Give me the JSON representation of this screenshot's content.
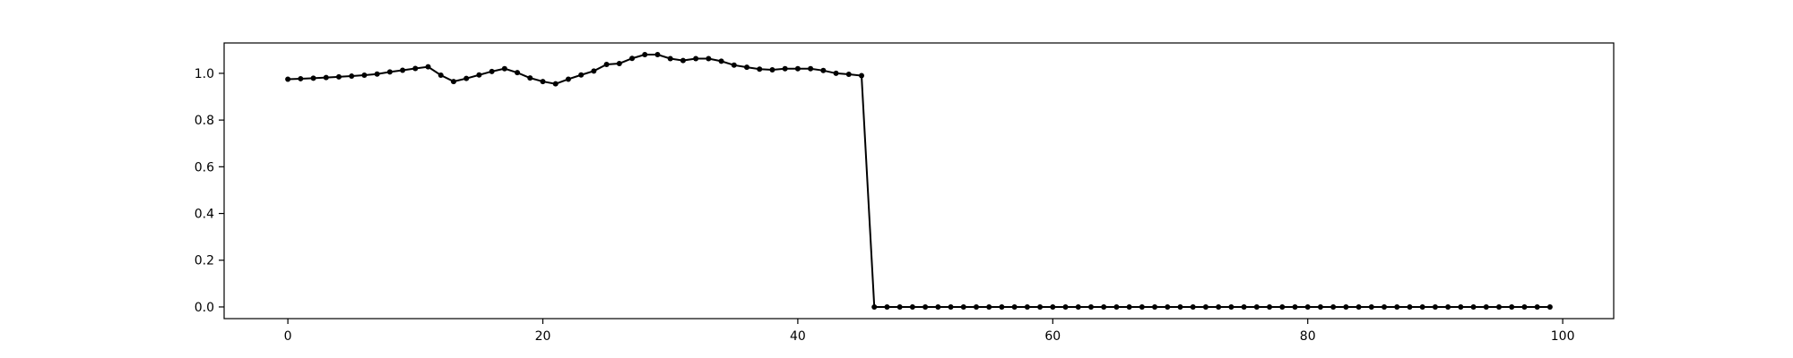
{
  "chart_data": {
    "type": "line",
    "title": "",
    "xlabel": "",
    "ylabel": "",
    "xlim": [
      -5,
      104
    ],
    "ylim": [
      -0.05,
      1.13
    ],
    "grid": false,
    "legend": "none",
    "marker": "dot",
    "colors": {
      "line": "#000000",
      "marker": "#000000",
      "axes": "#000000",
      "background": "#ffffff"
    },
    "x_ticks": [
      0,
      20,
      40,
      60,
      80,
      100
    ],
    "x_tick_labels": [
      "0",
      "20",
      "40",
      "60",
      "80",
      "100"
    ],
    "y_ticks": [
      0.0,
      0.2,
      0.4,
      0.6,
      0.8,
      1.0
    ],
    "y_tick_labels": [
      "0.0",
      "0.2",
      "0.4",
      "0.6",
      "0.8",
      "1.0"
    ],
    "series": [
      {
        "x": [
          0,
          1,
          2,
          3,
          4,
          5,
          6,
          7,
          8,
          9,
          10,
          11,
          12,
          13,
          14,
          15,
          16,
          17,
          18,
          19,
          20,
          21,
          22,
          23,
          24,
          25,
          26,
          27,
          28,
          29,
          30,
          31,
          32,
          33,
          34,
          35,
          36,
          37,
          38,
          39,
          40,
          41,
          42,
          43,
          44,
          45,
          46,
          47,
          48,
          49,
          50,
          51,
          52,
          53,
          54,
          55,
          56,
          57,
          58,
          59,
          60,
          61,
          62,
          63,
          64,
          65,
          66,
          67,
          68,
          69,
          70,
          71,
          72,
          73,
          74,
          75,
          76,
          77,
          78,
          79,
          80,
          81,
          82,
          83,
          84,
          85,
          86,
          87,
          88,
          89,
          90,
          91,
          92,
          93,
          94,
          95,
          96,
          97,
          98,
          99
        ],
        "values": [
          0.975,
          0.977,
          0.979,
          0.982,
          0.985,
          0.988,
          0.992,
          0.997,
          1.006,
          1.013,
          1.021,
          1.028,
          0.992,
          0.965,
          0.978,
          0.993,
          1.008,
          1.02,
          1.003,
          0.98,
          0.965,
          0.955,
          0.975,
          0.993,
          1.01,
          1.038,
          1.042,
          1.064,
          1.08,
          1.08,
          1.063,
          1.055,
          1.063,
          1.063,
          1.052,
          1.035,
          1.026,
          1.018,
          1.015,
          1.02,
          1.02,
          1.02,
          1.012,
          1.0,
          0.996,
          0.99,
          0.0,
          0.0,
          0.0,
          0.0,
          0.0,
          0.0,
          0.0,
          0.0,
          0.0,
          0.0,
          0.0,
          0.0,
          0.0,
          0.0,
          0.0,
          0.0,
          0.0,
          0.0,
          0.0,
          0.0,
          0.0,
          0.0,
          0.0,
          0.0,
          0.0,
          0.0,
          0.0,
          0.0,
          0.0,
          0.0,
          0.0,
          0.0,
          0.0,
          0.0,
          0.0,
          0.0,
          0.0,
          0.0,
          0.0,
          0.0,
          0.0,
          0.0,
          0.0,
          0.0,
          0.0,
          0.0,
          0.0,
          0.0,
          0.0,
          0.0,
          0.0,
          0.0,
          0.0,
          0.0
        ]
      }
    ]
  }
}
